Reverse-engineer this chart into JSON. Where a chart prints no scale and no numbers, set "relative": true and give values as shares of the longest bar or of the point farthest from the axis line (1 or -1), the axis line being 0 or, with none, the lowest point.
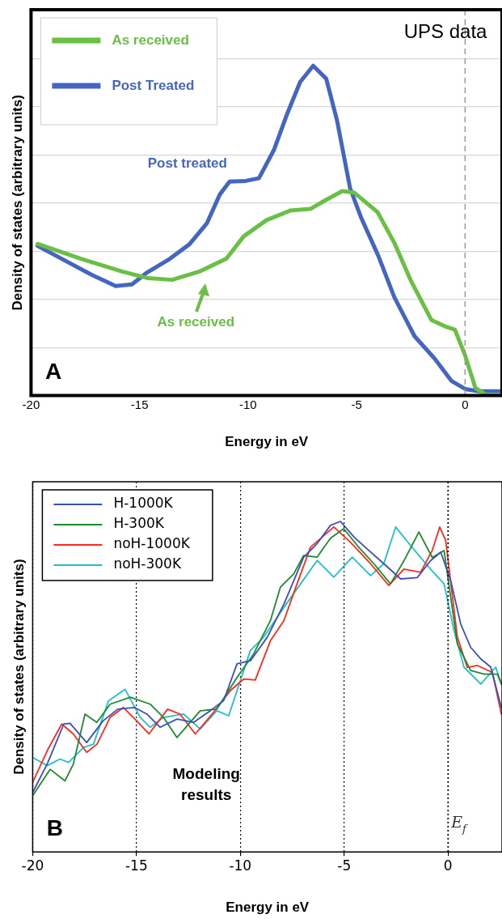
{
  "chart_data": [
    {
      "type": "line",
      "xlabel": "Energy in eV",
      "ylabel": "Density of states (arbitrary units)",
      "relative": true,
      "xlim": [
        -20,
        1.7
      ],
      "xticks": [
        -20,
        -15,
        -10,
        -5,
        0
      ],
      "grid": "y",
      "legend": "top left",
      "ref_lines": [
        {
          "axis": "x",
          "value": 0,
          "line_style": "dashed",
          "color": "#999999"
        }
      ],
      "annotations": [
        "UPS data",
        "A",
        "Post treated",
        "As received"
      ],
      "series": [
        {
          "name": "As received",
          "color": "#6abf45",
          "x": [
            -19.7,
            -17.7,
            -15.8,
            -14.6,
            -13.5,
            -12.25,
            -11.0,
            -10.2,
            -9.15,
            -8.06,
            -7.13,
            -6.5,
            -5.66,
            -5.1,
            -4.03,
            -3.26,
            -2.48,
            -1.55,
            -0.93,
            -0.47,
            0,
            0.47,
            0.93,
            1.7
          ],
          "values": [
            0.46,
            0.415,
            0.376,
            0.356,
            0.351,
            0.376,
            0.415,
            0.483,
            0.532,
            0.561,
            0.566,
            0.59,
            0.62,
            0.615,
            0.556,
            0.463,
            0.346,
            0.229,
            0.21,
            0.2,
            0.122,
            0.024,
            0.003,
            0.003
          ]
        },
        {
          "name": "Post Treated",
          "color": "#4466c0",
          "x": [
            -19.7,
            -18.45,
            -17.2,
            -16.1,
            -15.35,
            -14.7,
            -13.6,
            -12.7,
            -11.9,
            -11.3,
            -10.85,
            -10.1,
            -9.5,
            -8.8,
            -8.2,
            -7.6,
            -7.0,
            -6.4,
            -5.9,
            -5.3,
            -4.8,
            -4.0,
            -3.26,
            -2.33,
            -1.4,
            -0.62,
            0,
            0.62,
            1.7
          ],
          "values": [
            0.454,
            0.41,
            0.366,
            0.332,
            0.337,
            0.371,
            0.415,
            0.459,
            0.522,
            0.61,
            0.649,
            0.651,
            0.659,
            0.746,
            0.854,
            0.951,
            1.0,
            0.961,
            0.834,
            0.629,
            0.541,
            0.424,
            0.298,
            0.18,
            0.112,
            0.044,
            0.02,
            0.013,
            0.013
          ]
        }
      ]
    },
    {
      "type": "line",
      "xlabel": "Energy in eV",
      "ylabel": "Density of states (arbitrary units)",
      "relative": true,
      "xlim": [
        -20,
        2.6
      ],
      "xticks": [
        -20,
        -15,
        -10,
        -5,
        0
      ],
      "grid": "x",
      "legend": "top left",
      "ref_lines": [
        {
          "axis": "x",
          "value": 0,
          "label": "E$_{f}$",
          "line_style": "dotted",
          "color": "#000000"
        }
      ],
      "annotations": [
        "Modeling results",
        "B"
      ],
      "series": [
        {
          "name": "H-1000K",
          "color": "#3a4fb8",
          "x": [
            -20,
            -19.3,
            -18.5,
            -18.2,
            -17.4,
            -16.6,
            -15.9,
            -15.1,
            -14.5,
            -13.86,
            -13.05,
            -12.25,
            -11.45,
            -10.8,
            -10.16,
            -9.5,
            -8.7,
            -7.9,
            -6.95,
            -6.3,
            -5.66,
            -5.18,
            -4.53,
            -3.9,
            -3.09,
            -2.28,
            -1.48,
            -0.84,
            -0.35,
            0.13,
            0.61,
            1.09,
            1.58,
            2.06,
            2.57
          ],
          "values": [
            0.18,
            0.266,
            0.387,
            0.389,
            0.331,
            0.397,
            0.432,
            0.437,
            0.417,
            0.377,
            0.402,
            0.392,
            0.427,
            0.458,
            0.569,
            0.579,
            0.65,
            0.75,
            0.892,
            0.933,
            0.988,
            1.0,
            0.953,
            0.917,
            0.872,
            0.826,
            0.83,
            0.881,
            0.907,
            0.821,
            0.69,
            0.619,
            0.584,
            0.559,
            0.437
          ]
        },
        {
          "name": "H-300K",
          "color": "#1e8a2e",
          "x": [
            -20,
            -19.16,
            -18.44,
            -18.04,
            -17.48,
            -16.91,
            -16.27,
            -15.3,
            -14.34,
            -13.7,
            -13.05,
            -11.93,
            -11.13,
            -10.16,
            -9.36,
            -8.55,
            -8.07,
            -7.43,
            -6.95,
            -6.3,
            -5.66,
            -5.02,
            -4.37,
            -3.57,
            -2.77,
            -2.12,
            -1.4,
            -0.76,
            -0.19,
            0.45,
            1.09,
            1.74,
            2.38,
            2.57
          ],
          "values": [
            0.17,
            0.25,
            0.215,
            0.266,
            0.417,
            0.392,
            0.447,
            0.468,
            0.447,
            0.407,
            0.346,
            0.427,
            0.432,
            0.528,
            0.599,
            0.7,
            0.801,
            0.841,
            0.897,
            0.892,
            0.949,
            0.978,
            0.927,
            0.872,
            0.811,
            0.881,
            0.968,
            0.891,
            0.912,
            0.629,
            0.549,
            0.538,
            0.538,
            0.508
          ]
        },
        {
          "name": "noH-1000K",
          "color": "#ff2a1a",
          "x": [
            -20,
            -19.3,
            -18.6,
            -18.04,
            -17.4,
            -16.9,
            -16.27,
            -15.63,
            -15.0,
            -14.4,
            -13.5,
            -12.9,
            -12.17,
            -11.29,
            -10.48,
            -9.84,
            -9.28,
            -8.55,
            -7.9,
            -7.27,
            -6.62,
            -5.5,
            -4.7,
            -3.73,
            -2.85,
            -2.12,
            -1.32,
            -0.76,
            -0.4,
            -0.11,
            0.45,
            0.93,
            1.41,
            2.14,
            2.57
          ],
          "values": [
            0.21,
            0.306,
            0.387,
            0.357,
            0.301,
            0.326,
            0.407,
            0.437,
            0.397,
            0.357,
            0.432,
            0.417,
            0.357,
            0.422,
            0.488,
            0.523,
            0.52,
            0.639,
            0.7,
            0.811,
            0.922,
            0.983,
            0.937,
            0.872,
            0.806,
            0.856,
            0.846,
            0.912,
            0.983,
            0.942,
            0.65,
            0.558,
            0.564,
            0.543,
            0.417
          ]
        },
        {
          "name": "noH-300K",
          "color": "#1fc0c8",
          "x": [
            -20,
            -19.3,
            -18.68,
            -18.27,
            -17.55,
            -17.07,
            -16.35,
            -15.55,
            -14.82,
            -14.34,
            -13.7,
            -12.73,
            -11.93,
            -11.13,
            -10.56,
            -9.52,
            -8.87,
            -7.9,
            -7.1,
            -6.3,
            -5.5,
            -4.61,
            -3.73,
            -3.09,
            -2.52,
            -1.8,
            -1.0,
            -0.19,
            0.29,
            0.77,
            1.58,
            2.3,
            2.57
          ],
          "values": [
            0.286,
            0.261,
            0.281,
            0.271,
            0.316,
            0.326,
            0.457,
            0.492,
            0.407,
            0.377,
            0.407,
            0.417,
            0.372,
            0.427,
            0.412,
            0.609,
            0.65,
            0.74,
            0.811,
            0.882,
            0.831,
            0.892,
            0.836,
            0.872,
            0.983,
            0.927,
            0.867,
            0.811,
            0.67,
            0.559,
            0.508,
            0.559,
            0.508
          ]
        }
      ]
    }
  ]
}
